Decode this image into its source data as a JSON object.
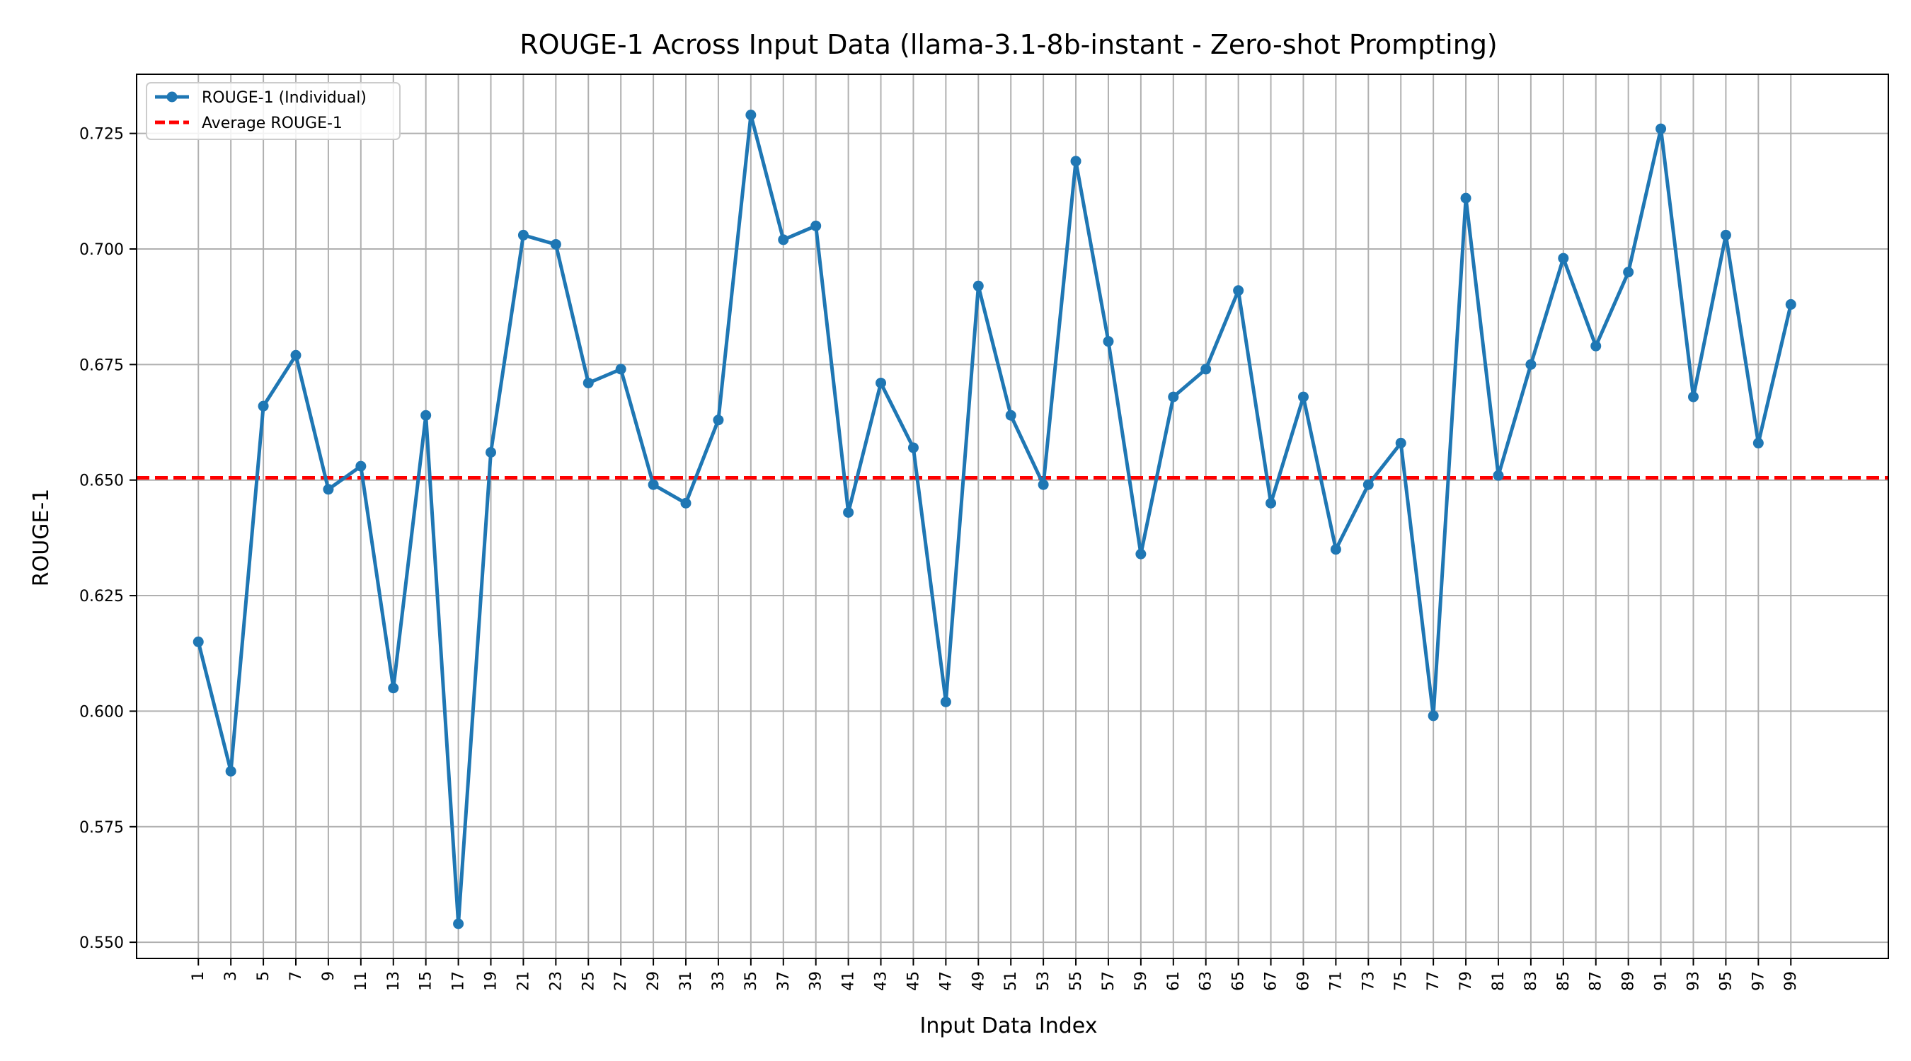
{
  "chart_data": {
    "type": "line",
    "title": "ROUGE-1 Across Input Data (llama-3.1-8b-instant - Zero-shot Prompting)",
    "xlabel": "Input Data Index",
    "ylabel": "ROUGE-1",
    "x": [
      1,
      3,
      5,
      7,
      9,
      11,
      13,
      15,
      17,
      19,
      21,
      23,
      25,
      27,
      29,
      31,
      33,
      35,
      37,
      39,
      41,
      43,
      45,
      47,
      49,
      51,
      53,
      55,
      57,
      59,
      61,
      63,
      65,
      67,
      69,
      71,
      73,
      75,
      77,
      79,
      81,
      83,
      85,
      87,
      89,
      91,
      93,
      95,
      97,
      99
    ],
    "x_tick_labels": [
      "1",
      "3",
      "5",
      "7",
      "9",
      "11",
      "13",
      "15",
      "17",
      "19",
      "21",
      "23",
      "25",
      "27",
      "29",
      "31",
      "33",
      "35",
      "37",
      "39",
      "41",
      "43",
      "45",
      "47",
      "49",
      "51",
      "53",
      "55",
      "57",
      "59",
      "61",
      "63",
      "65",
      "67",
      "69",
      "71",
      "73",
      "75",
      "77",
      "79",
      "81",
      "83",
      "85",
      "87",
      "89",
      "91",
      "93",
      "95",
      "97",
      "99"
    ],
    "xlim": [
      -2.8,
      105
    ],
    "ylim": [
      0.5465,
      0.7378
    ],
    "y_ticks": [
      0.55,
      0.575,
      0.6,
      0.625,
      0.65,
      0.675,
      0.7,
      0.725
    ],
    "y_tick_labels": [
      "0.550",
      "0.575",
      "0.600",
      "0.625",
      "0.650",
      "0.675",
      "0.700",
      "0.725"
    ],
    "grid": true,
    "legend_position": "top-left",
    "series": [
      {
        "name": "ROUGE-1 (Individual)",
        "color": "#1f77b4",
        "style": "solid-with-markers",
        "values": [
          0.615,
          0.587,
          0.666,
          0.677,
          0.648,
          0.653,
          0.605,
          0.664,
          0.554,
          0.656,
          0.703,
          0.701,
          0.671,
          0.674,
          0.649,
          0.645,
          0.663,
          0.729,
          0.702,
          0.705,
          0.643,
          0.671,
          0.657,
          0.602,
          0.692,
          0.664,
          0.649,
          0.719,
          0.68,
          0.634,
          0.668,
          0.674,
          0.691,
          0.645,
          0.668,
          0.635,
          0.649,
          0.658,
          0.599,
          0.711,
          0.651,
          0.675,
          0.698,
          0.679,
          0.695,
          0.726,
          0.668,
          0.703,
          0.658,
          0.688
        ]
      }
    ],
    "reference_lines": [
      {
        "name": "Average ROUGE-1",
        "y": 0.6505,
        "color": "#ff0000",
        "style": "dashed"
      }
    ]
  }
}
